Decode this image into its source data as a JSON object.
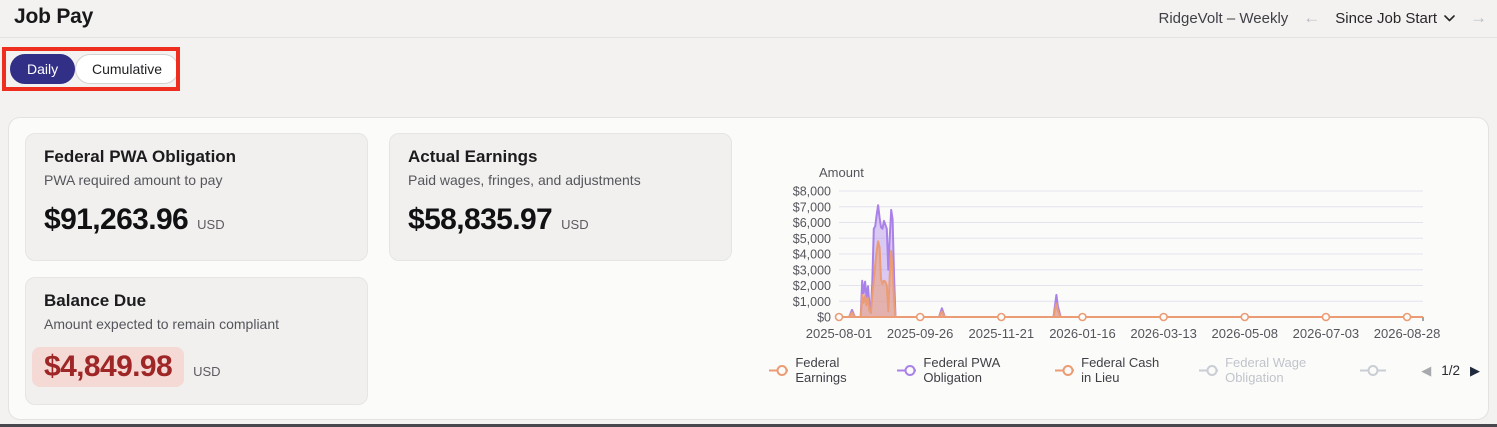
{
  "header": {
    "title": "Job Pay",
    "job_label": "RidgeVolt – Weekly",
    "prev_arrow": "←",
    "range_label": "Since Job Start",
    "next_arrow": "→"
  },
  "annotation": {
    "color": "#ee2e1f",
    "target": "view-mode-toggle"
  },
  "toggle": {
    "options": [
      {
        "label": "Daily",
        "selected": true
      },
      {
        "label": "Cumulative",
        "selected": false
      }
    ]
  },
  "cards": [
    {
      "title": "Federal PWA Obligation",
      "subtitle": "PWA required amount to pay",
      "value": "$91,263.96",
      "currency": "USD",
      "highlight": false
    },
    {
      "title": "Actual Earnings",
      "subtitle": "Paid wages, fringes, and adjustments",
      "value": "$58,835.97",
      "currency": "USD",
      "highlight": false
    },
    {
      "title": "Balance Due",
      "subtitle": "Amount expected to remain compliant",
      "value": "$4,849.98",
      "currency": "USD",
      "highlight": true
    }
  ],
  "chart_data": {
    "type": "line",
    "title": "Amount",
    "x_axis": {
      "note": "points are [days since 2025-08-01, USD amount]",
      "tick_labels": [
        "2025-08-01",
        "2025-09-26",
        "2025-11-21",
        "2026-01-16",
        "2026-03-13",
        "2026-05-08",
        "2026-07-03",
        "2026-08-28"
      ],
      "tick_days": [
        0,
        56,
        112,
        168,
        224,
        280,
        336,
        392
      ],
      "domain_days": [
        0,
        403
      ]
    },
    "y_axis": {
      "tick_labels": [
        "$0",
        "$1,000",
        "$2,000",
        "$3,000",
        "$4,000",
        "$5,000",
        "$6,000",
        "$7,000",
        "$8,000"
      ],
      "min": 0,
      "max": 8000,
      "grid": true
    },
    "series": [
      {
        "name": "Federal Earnings",
        "color": "#eb9c74",
        "hidden": false,
        "points": [
          [
            0,
            0
          ],
          [
            7,
            0
          ],
          [
            9,
            300
          ],
          [
            11,
            0
          ],
          [
            15,
            0
          ],
          [
            16,
            1400
          ],
          [
            17,
            900
          ],
          [
            18,
            1350
          ],
          [
            19,
            750
          ],
          [
            20,
            1200
          ],
          [
            21,
            400
          ],
          [
            22,
            250
          ],
          [
            23,
            1400
          ],
          [
            24,
            2300
          ],
          [
            25,
            3300
          ],
          [
            26,
            4200
          ],
          [
            27,
            4800
          ],
          [
            28,
            4400
          ],
          [
            29,
            2400
          ],
          [
            30,
            2100
          ],
          [
            31,
            2300
          ],
          [
            32,
            2250
          ],
          [
            33,
            2000
          ],
          [
            34,
            350
          ],
          [
            35,
            2600
          ],
          [
            36,
            4200
          ],
          [
            37,
            2900
          ],
          [
            38,
            1000
          ],
          [
            39,
            0
          ],
          [
            69,
            0
          ],
          [
            71,
            350
          ],
          [
            73,
            0
          ],
          [
            148,
            0
          ],
          [
            150,
            850
          ],
          [
            151,
            400
          ],
          [
            153,
            0
          ],
          [
            403,
            0
          ]
        ]
      },
      {
        "name": "Federal PWA Obligation",
        "color": "#a981e8",
        "hidden": false,
        "points": [
          [
            0,
            0
          ],
          [
            7,
            0
          ],
          [
            9,
            450
          ],
          [
            11,
            0
          ],
          [
            15,
            0
          ],
          [
            16,
            2300
          ],
          [
            17,
            1500
          ],
          [
            18,
            2250
          ],
          [
            19,
            1250
          ],
          [
            20,
            1950
          ],
          [
            21,
            800
          ],
          [
            22,
            500
          ],
          [
            23,
            2200
          ],
          [
            24,
            5600
          ],
          [
            25,
            5750
          ],
          [
            26,
            6500
          ],
          [
            27,
            7100
          ],
          [
            28,
            6300
          ],
          [
            29,
            5700
          ],
          [
            30,
            5600
          ],
          [
            31,
            6100
          ],
          [
            32,
            5850
          ],
          [
            33,
            5600
          ],
          [
            34,
            3000
          ],
          [
            35,
            5000
          ],
          [
            36,
            6800
          ],
          [
            37,
            6200
          ],
          [
            38,
            2500
          ],
          [
            39,
            0
          ],
          [
            69,
            0
          ],
          [
            71,
            550
          ],
          [
            73,
            0
          ],
          [
            148,
            0
          ],
          [
            150,
            1400
          ],
          [
            151,
            700
          ],
          [
            153,
            0
          ],
          [
            403,
            0
          ]
        ]
      },
      {
        "name": "Federal Cash in Lieu",
        "color": "#eb9c74",
        "hidden": false,
        "flat_zero": true,
        "markers_at_ticks": true,
        "points": [
          [
            0,
            0
          ],
          [
            403,
            0
          ]
        ]
      },
      {
        "name": "Federal Wage Obligation",
        "color": "#c9cdd4",
        "hidden": true,
        "points": []
      }
    ],
    "legend_position": "bottom",
    "legend_page": "1/2"
  },
  "legend": {
    "items": [
      {
        "label": "Federal Earnings",
        "color": "#eb9c74",
        "active": true
      },
      {
        "label": "Federal PWA Obligation",
        "color": "#a981e8",
        "active": true
      },
      {
        "label": "Federal Cash in Lieu",
        "color": "#eb9c74",
        "active": true
      },
      {
        "label": "Federal Wage Obligation",
        "color": "#c9cdd4",
        "active": false
      },
      {
        "label": "",
        "color": "#c9cdd4",
        "active": false
      }
    ],
    "pager": {
      "prev": "◀",
      "label": "1/2",
      "next": "▶"
    }
  }
}
